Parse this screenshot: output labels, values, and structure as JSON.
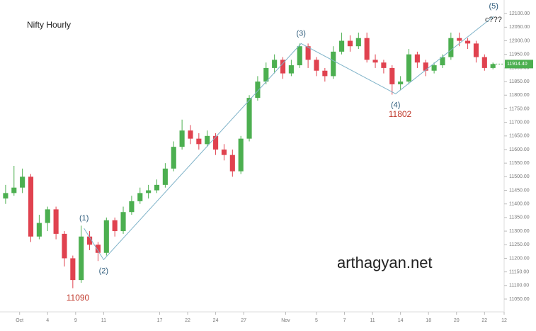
{
  "chart_data": {
    "type": "candlestick",
    "title": "Nifty Hourly",
    "watermark": "arthagyan.net",
    "x": [
      2,
      5,
      8,
      11,
      14,
      17,
      20,
      23,
      26,
      29,
      32,
      35,
      38,
      41,
      44,
      47,
      50,
      53,
      56,
      59,
      62,
      65,
      68,
      71,
      74,
      77,
      80,
      83,
      86,
      89,
      92,
      95,
      98,
      101,
      104,
      107,
      110,
      113,
      116,
      119,
      122,
      125,
      128,
      131,
      134,
      137,
      140,
      143,
      146,
      149,
      152,
      155,
      158,
      161,
      164,
      167,
      170,
      173,
      176
    ],
    "open": [
      11420,
      11440,
      11460,
      11500,
      11280,
      11330,
      11380,
      11290,
      11200,
      11120,
      11280,
      11250,
      11220,
      11340,
      11300,
      11370,
      11410,
      11440,
      11450,
      11470,
      11530,
      11610,
      11670,
      11640,
      11620,
      11650,
      11600,
      11580,
      11520,
      11640,
      11790,
      11850,
      11900,
      11930,
      11880,
      11910,
      11980,
      11930,
      11890,
      11870,
      11960,
      12000,
      11980,
      12010,
      11930,
      11920,
      11900,
      11840,
      11850,
      11950,
      11920,
      11890,
      11910,
      11940,
      12010,
      12000,
      11990,
      11940,
      11900
    ],
    "close": [
      11440,
      11460,
      11500,
      11280,
      11330,
      11380,
      11290,
      11200,
      11120,
      11280,
      11250,
      11220,
      11340,
      11300,
      11370,
      11410,
      11440,
      11450,
      11470,
      11530,
      11610,
      11670,
      11640,
      11620,
      11650,
      11600,
      11580,
      11520,
      11640,
      11790,
      11850,
      11900,
      11930,
      11880,
      11910,
      11980,
      11930,
      11890,
      11870,
      11960,
      12000,
      11980,
      12010,
      11930,
      11920,
      11900,
      11840,
      11850,
      11950,
      11920,
      11890,
      11910,
      11940,
      12010,
      12000,
      11990,
      11940,
      11900,
      11914.4
    ],
    "high": [
      11470,
      11540,
      11530,
      11510,
      11360,
      11390,
      11390,
      11300,
      11210,
      11320,
      11300,
      11260,
      11350,
      11350,
      11390,
      11430,
      11460,
      11470,
      11490,
      11550,
      11630,
      11710,
      11690,
      11660,
      11670,
      11660,
      11620,
      11600,
      11650,
      11800,
      11870,
      11920,
      11950,
      11940,
      11930,
      11990,
      11990,
      11940,
      11900,
      11980,
      12030,
      12020,
      12030,
      12030,
      11950,
      11930,
      11910,
      11870,
      11970,
      11960,
      11930,
      11920,
      11950,
      12030,
      12030,
      12010,
      12000,
      11950,
      11920
    ],
    "low": [
      11400,
      11430,
      11440,
      11260,
      11270,
      11300,
      11270,
      11170,
      11090,
      11110,
      11230,
      11190,
      11210,
      11280,
      11290,
      11360,
      11400,
      11420,
      11440,
      11460,
      11520,
      11600,
      11620,
      11600,
      11610,
      11580,
      11560,
      11500,
      11510,
      11630,
      11780,
      11840,
      11880,
      11860,
      11870,
      11900,
      11900,
      11870,
      11850,
      11860,
      11950,
      11960,
      11970,
      11920,
      11900,
      11880,
      11802,
      11820,
      11840,
      11900,
      11870,
      11880,
      11900,
      11930,
      11980,
      11970,
      11920,
      11890,
      11895
    ],
    "last_label": "11914.40",
    "up_color": "#4caf50",
    "down_color": "#e0424f",
    "wave_color": "#7fb3c9",
    "wave_line": {
      "x": [
        30,
        37,
        107.5,
        141.25,
        176.25
      ],
      "y": [
        11310,
        11195,
        11990,
        11805,
        12090
      ],
      "labels": [
        "(1)",
        "(2)",
        "(3)",
        "(4)",
        "(5)"
      ]
    },
    "annotations": [
      "c???",
      "11090",
      "11802"
    ],
    "xlim": [
      0,
      180
    ],
    "ylim": [
      11003,
      12150
    ],
    "grid": false,
    "xticks": [
      {
        "value": 7,
        "label": "Oct"
      },
      {
        "value": 17,
        "label": "4"
      },
      {
        "value": 27,
        "label": "9"
      },
      {
        "value": 37,
        "label": "11"
      },
      {
        "value": 57,
        "label": "17"
      },
      {
        "value": 67,
        "label": "22"
      },
      {
        "value": 77,
        "label": "24"
      },
      {
        "value": 87,
        "label": "27"
      },
      {
        "value": 102,
        "label": "Nov"
      },
      {
        "value": 113,
        "label": "5"
      },
      {
        "value": 123,
        "label": "7"
      },
      {
        "value": 133,
        "label": "11"
      },
      {
        "value": 143,
        "label": "14"
      },
      {
        "value": 153,
        "label": "18"
      },
      {
        "value": 163,
        "label": "20"
      },
      {
        "value": 173,
        "label": "22"
      },
      {
        "value": 180,
        "label": "12"
      }
    ],
    "yticks": [
      {
        "value": 11050,
        "label": "11050.00"
      },
      {
        "value": 11100,
        "label": "11100.00"
      },
      {
        "value": 11150,
        "label": "11150.00"
      },
      {
        "value": 11200,
        "label": "11200.00"
      },
      {
        "value": 11250,
        "label": "11250.00"
      },
      {
        "value": 11300,
        "label": "11300.00"
      },
      {
        "value": 11350,
        "label": "11350.00"
      },
      {
        "value": 11400,
        "label": "11400.00"
      },
      {
        "value": 11450,
        "label": "11450.00"
      },
      {
        "value": 11500,
        "label": "11500.00"
      },
      {
        "value": 11550,
        "label": "11550.00"
      },
      {
        "value": 11600,
        "label": "11600.00"
      },
      {
        "value": 11650,
        "label": "11650.00"
      },
      {
        "value": 11700,
        "label": "11700.00"
      },
      {
        "value": 11750,
        "label": "11750.00"
      },
      {
        "value": 11800,
        "label": "11800.00"
      },
      {
        "value": 11850,
        "label": "11850.00"
      },
      {
        "value": 11900,
        "label": "11900.00"
      },
      {
        "value": 11950,
        "label": "11950.00"
      },
      {
        "value": 12000,
        "label": "12000.00"
      },
      {
        "value": 12050,
        "label": "12050.00"
      },
      {
        "value": 12100,
        "label": "12100.00"
      }
    ]
  }
}
